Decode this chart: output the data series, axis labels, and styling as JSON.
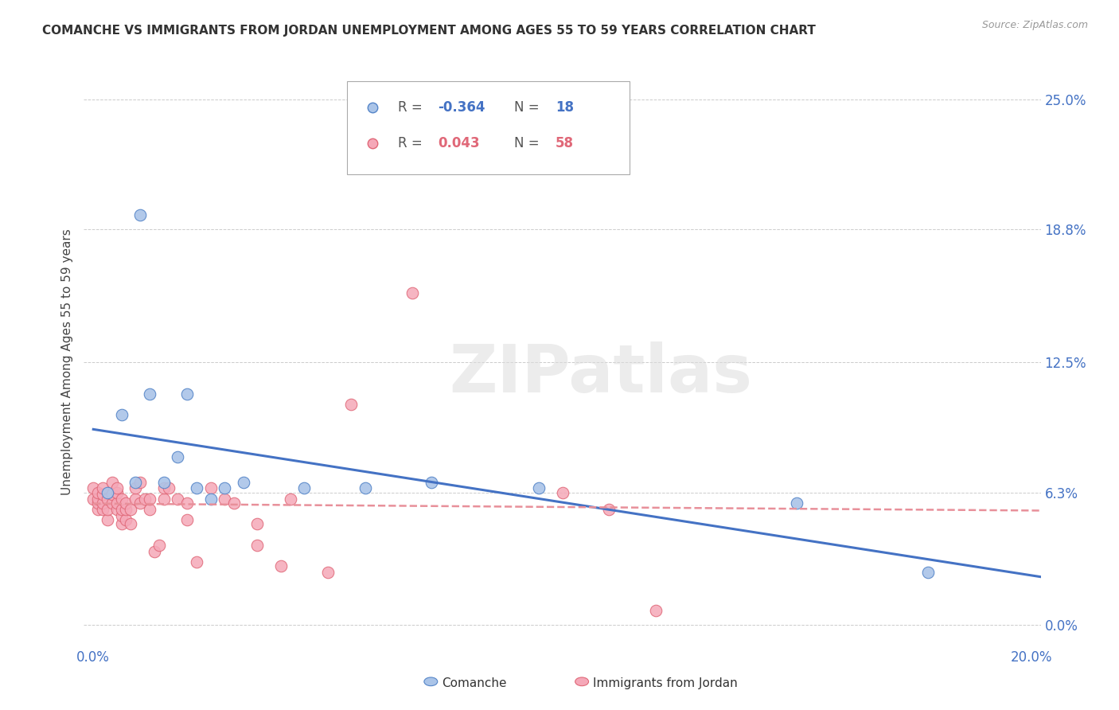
{
  "title": "COMANCHE VS IMMIGRANTS FROM JORDAN UNEMPLOYMENT AMONG AGES 55 TO 59 YEARS CORRELATION CHART",
  "source": "Source: ZipAtlas.com",
  "ylabel": "Unemployment Among Ages 55 to 59 years",
  "xlim": [
    -0.002,
    0.202
  ],
  "ylim": [
    -0.01,
    0.26
  ],
  "comanche_color": "#aac4e8",
  "jordan_color": "#f5a8b8",
  "comanche_edge_color": "#5585c8",
  "jordan_edge_color": "#e06878",
  "comanche_line_color": "#4472c4",
  "jordan_line_color": "#e8909a",
  "watermark_text": "ZIPatlas",
  "legend_r1": "-0.364",
  "legend_n1": "18",
  "legend_r2": "0.043",
  "legend_n2": "58",
  "comanche_x": [
    0.003,
    0.006,
    0.009,
    0.01,
    0.012,
    0.015,
    0.018,
    0.02,
    0.022,
    0.025,
    0.028,
    0.032,
    0.045,
    0.058,
    0.072,
    0.095,
    0.15,
    0.178
  ],
  "comanche_y": [
    0.063,
    0.1,
    0.068,
    0.195,
    0.11,
    0.068,
    0.08,
    0.11,
    0.065,
    0.06,
    0.065,
    0.068,
    0.065,
    0.065,
    0.068,
    0.065,
    0.058,
    0.025
  ],
  "jordan_x": [
    0.0,
    0.0,
    0.001,
    0.001,
    0.001,
    0.001,
    0.002,
    0.002,
    0.002,
    0.002,
    0.003,
    0.003,
    0.003,
    0.004,
    0.004,
    0.004,
    0.005,
    0.005,
    0.005,
    0.005,
    0.006,
    0.006,
    0.006,
    0.006,
    0.007,
    0.007,
    0.007,
    0.008,
    0.008,
    0.009,
    0.009,
    0.01,
    0.01,
    0.011,
    0.012,
    0.012,
    0.013,
    0.014,
    0.015,
    0.015,
    0.016,
    0.018,
    0.02,
    0.02,
    0.022,
    0.025,
    0.028,
    0.03,
    0.035,
    0.035,
    0.04,
    0.042,
    0.05,
    0.055,
    0.068,
    0.1,
    0.11,
    0.12
  ],
  "jordan_y": [
    0.06,
    0.065,
    0.055,
    0.058,
    0.06,
    0.063,
    0.055,
    0.058,
    0.062,
    0.065,
    0.05,
    0.055,
    0.06,
    0.058,
    0.062,
    0.068,
    0.055,
    0.058,
    0.063,
    0.065,
    0.048,
    0.052,
    0.055,
    0.06,
    0.05,
    0.055,
    0.058,
    0.048,
    0.055,
    0.06,
    0.065,
    0.058,
    0.068,
    0.06,
    0.055,
    0.06,
    0.035,
    0.038,
    0.06,
    0.065,
    0.065,
    0.06,
    0.05,
    0.058,
    0.03,
    0.065,
    0.06,
    0.058,
    0.038,
    0.048,
    0.028,
    0.06,
    0.025,
    0.105,
    0.158,
    0.063,
    0.055,
    0.007
  ],
  "ytick_positions": [
    0.0,
    0.063,
    0.125,
    0.188,
    0.25
  ],
  "ytick_labels_right": [
    "0.0%",
    "6.3%",
    "12.5%",
    "18.8%",
    "25.0%"
  ],
  "xtick_positions": [
    0.0,
    0.05,
    0.1,
    0.15,
    0.2
  ],
  "xtick_labels": [
    "0.0%",
    "",
    "",
    "",
    "20.0%"
  ]
}
